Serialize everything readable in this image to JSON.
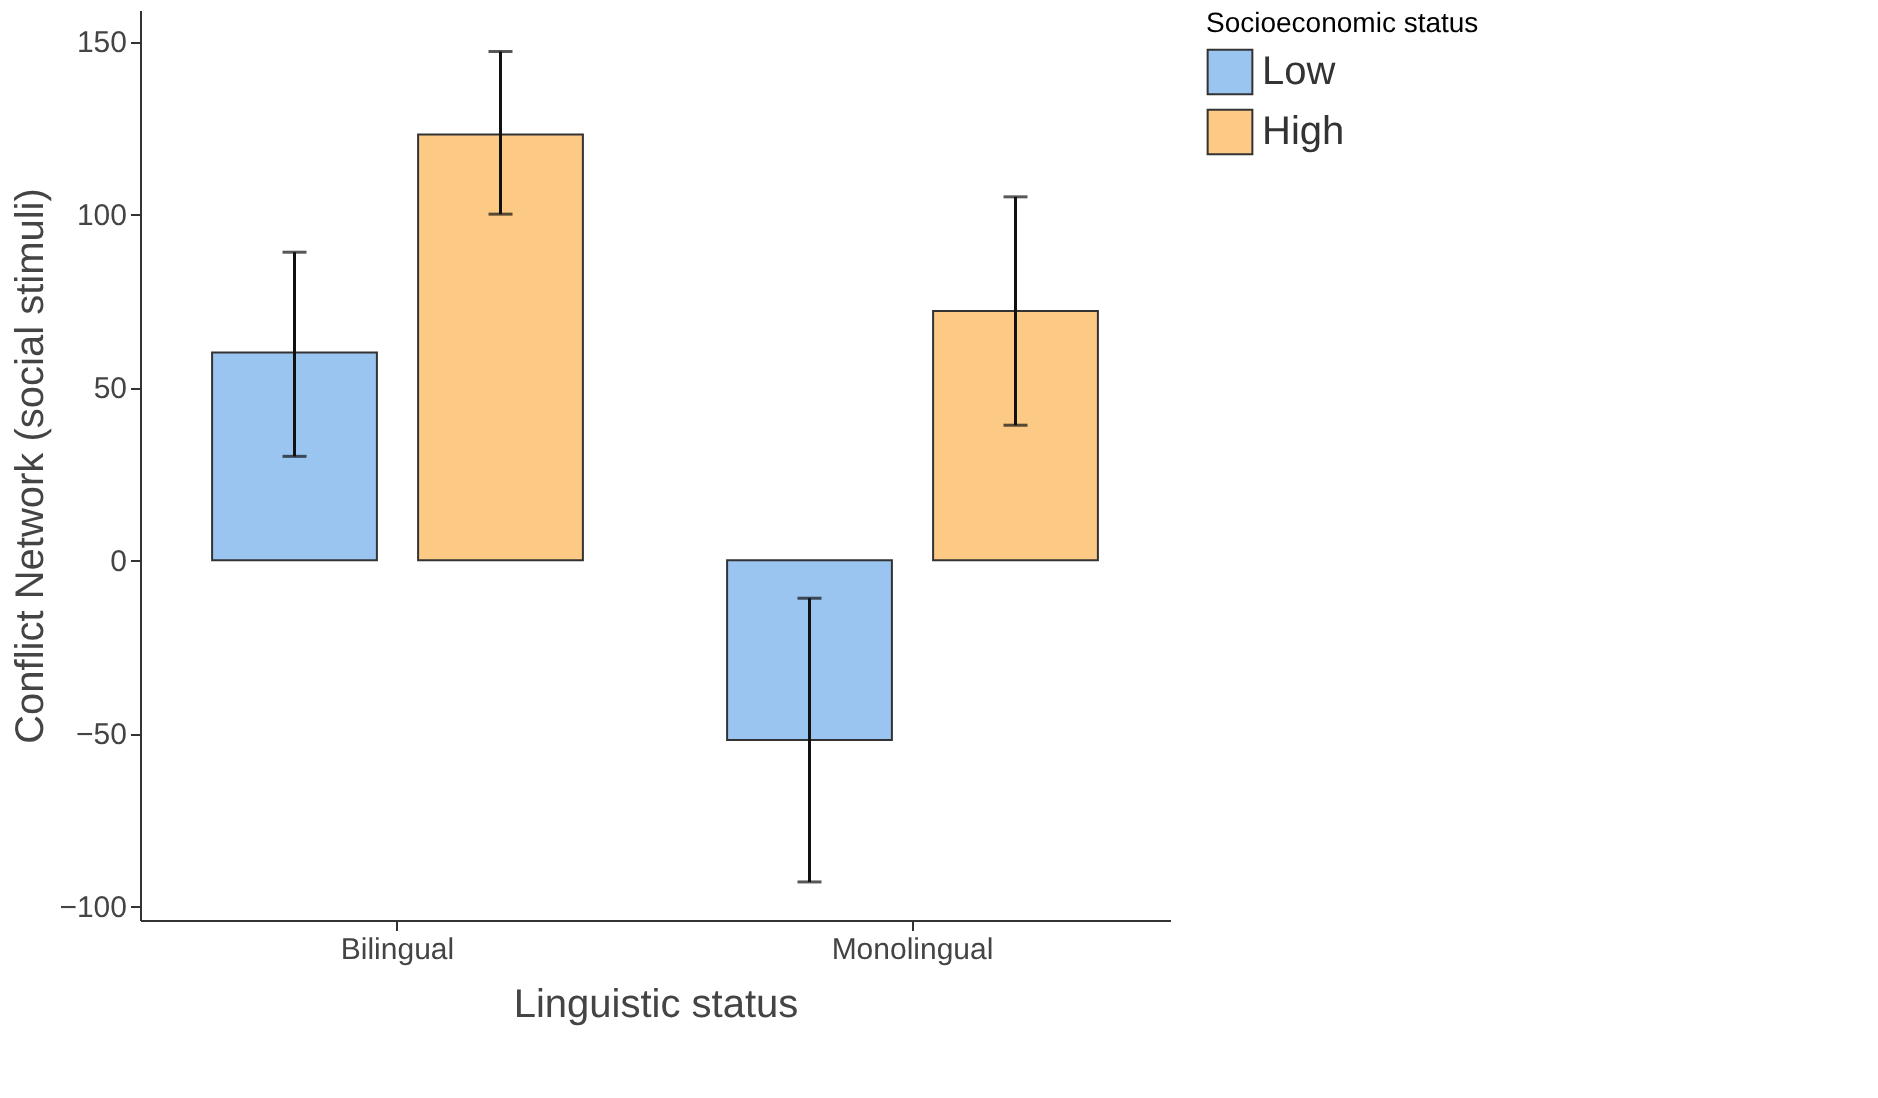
{
  "chart_data": {
    "type": "bar",
    "xlabel": "Linguistic status",
    "ylabel": "Conflict Network (social stimuli)",
    "legend_title": "Socioeconomic status",
    "legend": "right",
    "grid": false,
    "categories": [
      "Bilingual",
      "Monolingual"
    ],
    "series": [
      {
        "name": "Low",
        "color": "#9ac5f0",
        "values": [
          60,
          -52
        ],
        "errors": [
          [
            30,
            89
          ],
          [
            -93,
            -11
          ]
        ]
      },
      {
        "name": "High",
        "color": "#fcca84",
        "values": [
          123,
          72
        ],
        "errors": [
          [
            100,
            147
          ],
          [
            39,
            105
          ]
        ]
      }
    ],
    "ylim": [
      -104,
      159
    ],
    "yticks": [
      -100,
      -50,
      0,
      50,
      100,
      150
    ]
  }
}
